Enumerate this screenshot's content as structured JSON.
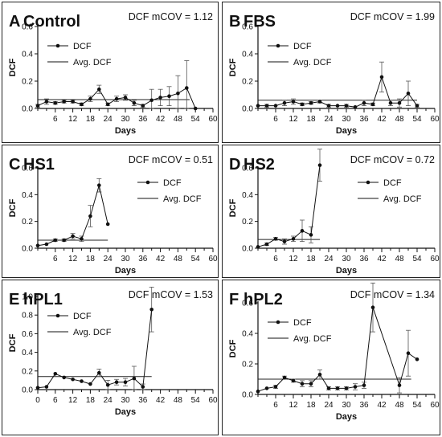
{
  "chart_data": [
    {
      "type": "line",
      "letter": "A",
      "title": "Control",
      "stat": "DCF mCOV = 1.12",
      "xlabel": "Days",
      "ylabel": "DCF",
      "xlim": [
        0,
        60
      ],
      "ylim": [
        0,
        0.6
      ],
      "xticks": [
        6,
        12,
        18,
        24,
        30,
        36,
        42,
        48,
        54,
        60
      ],
      "yticks": [
        0.0,
        0.2,
        0.4,
        0.6
      ],
      "ytick_labels": [
        "0.0",
        "0.2",
        "0.4",
        "0.6"
      ],
      "legend": {
        "position": "upper-left",
        "series": "DCF",
        "avg": "Avg. DCF"
      },
      "average": 0.065,
      "average_x_range": [
        0,
        52
      ],
      "series": {
        "name": "DCF",
        "x": [
          0,
          3,
          6,
          9,
          12,
          15,
          18,
          21,
          24,
          27,
          30,
          33,
          36,
          39,
          42,
          45,
          48,
          51,
          54
        ],
        "y": [
          0.02,
          0.05,
          0.04,
          0.05,
          0.05,
          0.03,
          0.07,
          0.14,
          0.03,
          0.07,
          0.08,
          0.04,
          0.02,
          0.06,
          0.08,
          0.09,
          0.11,
          0.15,
          0.0
        ],
        "err": [
          0.01,
          0.02,
          0.01,
          0.01,
          0.01,
          0.01,
          0.02,
          0.03,
          0.01,
          0.02,
          0.02,
          0.02,
          0.01,
          0.08,
          0.06,
          0.07,
          0.13,
          0.2,
          0.0
        ]
      }
    },
    {
      "type": "line",
      "letter": "B",
      "title": "FBS",
      "stat": "DCF mCOV = 1.99",
      "xlabel": "Days",
      "ylabel": "DCF",
      "xlim": [
        0,
        60
      ],
      "ylim": [
        0,
        0.6
      ],
      "xticks": [
        6,
        12,
        18,
        24,
        30,
        36,
        42,
        48,
        54,
        60
      ],
      "yticks": [
        0.0,
        0.2,
        0.4,
        0.6
      ],
      "ytick_labels": [
        "0.0",
        "0.2",
        "0.4",
        "0.6"
      ],
      "legend": {
        "position": "upper-left",
        "series": "DCF",
        "avg": "Avg. DCF"
      },
      "average": 0.06,
      "average_x_range": [
        0,
        54
      ],
      "series": {
        "name": "DCF",
        "x": [
          0,
          3,
          6,
          9,
          12,
          15,
          18,
          21,
          24,
          27,
          30,
          33,
          36,
          39,
          42,
          45,
          48,
          51,
          54
        ],
        "y": [
          0.02,
          0.02,
          0.02,
          0.04,
          0.05,
          0.03,
          0.04,
          0.05,
          0.02,
          0.02,
          0.02,
          0.01,
          0.04,
          0.03,
          0.23,
          0.04,
          0.04,
          0.11,
          0.02
        ],
        "err": [
          0.0,
          0.01,
          0.0,
          0.02,
          0.02,
          0.01,
          0.01,
          0.01,
          0.01,
          0.0,
          0.01,
          0.0,
          0.02,
          0.01,
          0.11,
          0.02,
          0.03,
          0.09,
          0.01
        ]
      }
    },
    {
      "type": "line",
      "letter": "C",
      "title": "HS1",
      "stat": "DCF mCOV = 0.51",
      "xlabel": "Days",
      "ylabel": "DCF",
      "xlim": [
        0,
        60
      ],
      "ylim": [
        0,
        0.6
      ],
      "xticks": [
        6,
        12,
        18,
        24,
        30,
        36,
        42,
        48,
        54,
        60
      ],
      "yticks": [
        0.0,
        0.2,
        0.4,
        0.6
      ],
      "ytick_labels": [
        "0.0",
        "0.2",
        "0.4",
        "0.6"
      ],
      "legend": {
        "position": "upper-right",
        "series": "DCF",
        "avg": "Avg. DCF"
      },
      "average": 0.06,
      "average_x_range": [
        0,
        24
      ],
      "series": {
        "name": "DCF",
        "x": [
          0,
          3,
          6,
          9,
          12,
          15,
          18,
          21,
          24
        ],
        "y": [
          0.02,
          0.03,
          0.06,
          0.06,
          0.09,
          0.07,
          0.24,
          0.47,
          0.18
        ],
        "err": [
          0.0,
          0.0,
          0.01,
          0.01,
          0.02,
          0.02,
          0.08,
          0.05,
          0.0
        ]
      }
    },
    {
      "type": "line",
      "letter": "D",
      "title": "HS2",
      "stat": "DCF mCOV = 0.72",
      "xlabel": "Days",
      "ylabel": "DCF",
      "xlim": [
        0,
        60
      ],
      "ylim": [
        0,
        0.6
      ],
      "xticks": [
        6,
        12,
        18,
        24,
        30,
        36,
        42,
        48,
        54,
        60
      ],
      "yticks": [
        0.0,
        0.2,
        0.4,
        0.6
      ],
      "ytick_labels": [
        "0.0",
        "0.2",
        "0.4",
        "0.6"
      ],
      "legend": {
        "position": "upper-right",
        "series": "DCF",
        "avg": "Avg. DCF"
      },
      "average": 0.065,
      "average_x_range": [
        0,
        21
      ],
      "series": {
        "name": "DCF",
        "x": [
          0,
          3,
          6,
          9,
          12,
          15,
          18,
          21
        ],
        "y": [
          0.01,
          0.03,
          0.07,
          0.05,
          0.07,
          0.13,
          0.1,
          0.62
        ],
        "err": [
          0.0,
          0.01,
          0.01,
          0.02,
          0.02,
          0.08,
          0.06,
          0.12
        ]
      }
    },
    {
      "type": "line",
      "letter": "E",
      "title": "hPL1",
      "stat": "DCF mCOV = 1.53",
      "xlabel": "Days",
      "ylabel": "DCF",
      "xlim": [
        0,
        60
      ],
      "ylim": [
        0,
        1.0
      ],
      "xticks": [
        0,
        6,
        12,
        18,
        24,
        30,
        36,
        42,
        48,
        54,
        60
      ],
      "yticks": [
        0.0,
        0.2,
        0.4,
        0.6,
        0.8,
        1.0
      ],
      "ytick_labels": [
        "0.0",
        "0.2",
        "0.4",
        "0.6",
        "0.8",
        "1.0"
      ],
      "legend": {
        "position": "upper-left",
        "series": "DCF",
        "avg": "Avg. DCF"
      },
      "average": 0.14,
      "average_x_range": [
        0,
        39
      ],
      "series": {
        "name": "DCF",
        "x": [
          0,
          3,
          6,
          9,
          12,
          15,
          18,
          21,
          24,
          27,
          30,
          33,
          36,
          39
        ],
        "y": [
          0.02,
          0.03,
          0.17,
          0.13,
          0.11,
          0.09,
          0.06,
          0.18,
          0.05,
          0.08,
          0.08,
          0.12,
          0.03,
          0.86
        ],
        "err": [
          0.0,
          0.0,
          0.0,
          0.0,
          0.0,
          0.0,
          0.0,
          0.04,
          0.05,
          0.03,
          0.04,
          0.13,
          0.03,
          0.24
        ]
      }
    },
    {
      "type": "line",
      "letter": "F",
      "title": "hPL2",
      "stat": "DCF mCOV = 1.34",
      "xlabel": "Days",
      "ylabel": "DCF",
      "xlim": [
        0,
        60
      ],
      "ylim": [
        0,
        0.6
      ],
      "xticks": [
        6,
        12,
        18,
        24,
        30,
        36,
        42,
        48,
        54,
        60
      ],
      "yticks": [
        0.0,
        0.2,
        0.4,
        0.6
      ],
      "ytick_labels": [
        "0.0",
        "0.2",
        "0.4",
        "0.6"
      ],
      "legend": {
        "position": "upper-left",
        "series": "DCF",
        "avg": "Avg. DCF"
      },
      "average": 0.1,
      "average_x_range": [
        0,
        52
      ],
      "series": {
        "name": "DCF",
        "x": [
          0,
          3,
          6,
          9,
          12,
          15,
          18,
          21,
          24,
          27,
          30,
          33,
          36,
          39,
          48,
          51,
          54
        ],
        "y": [
          0.02,
          0.04,
          0.05,
          0.11,
          0.09,
          0.07,
          0.07,
          0.13,
          0.04,
          0.04,
          0.04,
          0.05,
          0.06,
          0.57,
          0.06,
          0.27,
          0.23
        ],
        "err": [
          0.0,
          0.0,
          0.01,
          0.01,
          0.01,
          0.02,
          0.02,
          0.03,
          0.01,
          0.01,
          0.01,
          0.02,
          0.02,
          0.16,
          0.05,
          0.15,
          0.0
        ]
      }
    }
  ]
}
